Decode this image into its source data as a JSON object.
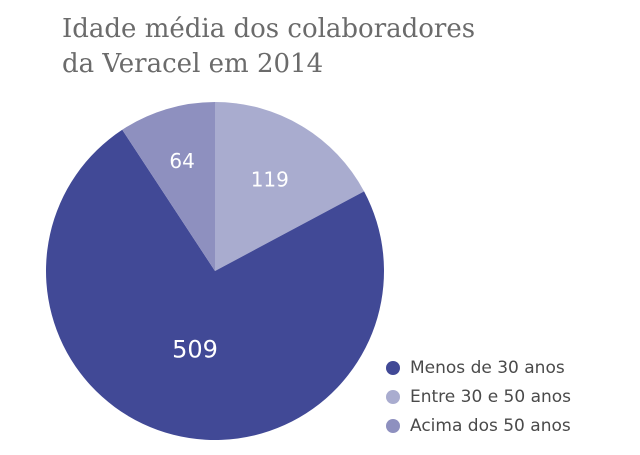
{
  "chart_data": {
    "type": "pie",
    "title_lines": [
      "Idade média dos colaboradores",
      "da Veracel em 2014"
    ],
    "slices": [
      {
        "label": "Menos de 30 anos",
        "value": 509,
        "color": "#414996"
      },
      {
        "label": "Entre 30 e 50 anos",
        "value": 119,
        "color": "#a9accf"
      },
      {
        "label": "Acima dos 50 anos",
        "value": 64,
        "color": "#8e90bf"
      }
    ],
    "slice_order_clockwise_from_top": [
      1,
      0,
      2
    ],
    "data_labels": [
      "509",
      "119",
      "64"
    ],
    "legend_position": "bottom-right"
  }
}
